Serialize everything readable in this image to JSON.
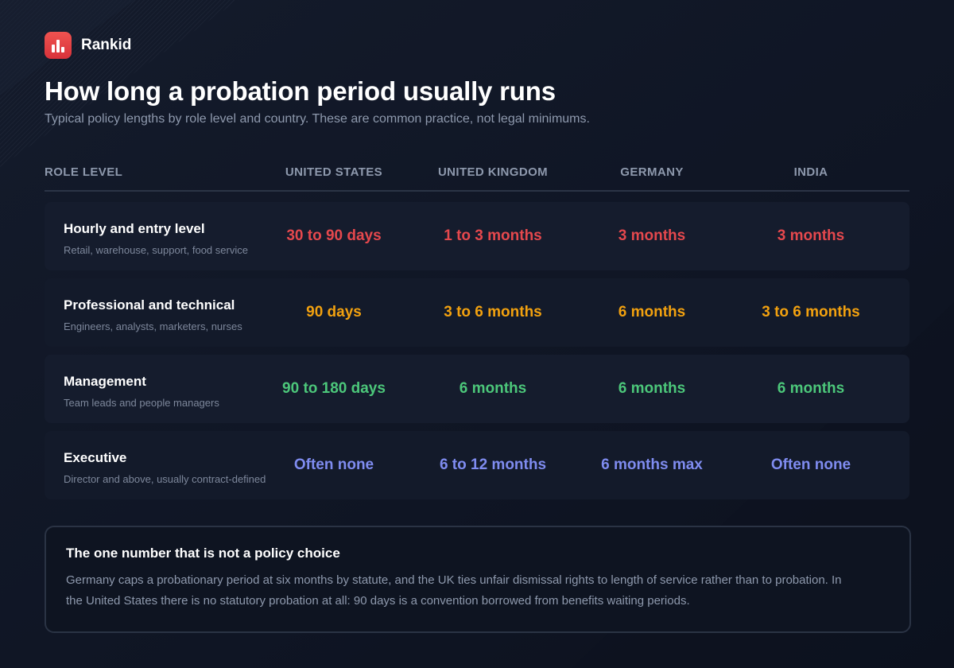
{
  "brand": {
    "name": "Rankid",
    "accent": "#e5413f"
  },
  "header": {
    "title": "How long a probation period usually runs",
    "subtitle": "Typical policy lengths by role level and country. These are common practice, not legal minimums."
  },
  "table": {
    "role_header": "ROLE LEVEL",
    "columns": [
      "UNITED STATES",
      "UNITED KINGDOM",
      "GERMANY",
      "INDIA"
    ],
    "rows": [
      {
        "role": "Hourly and entry level",
        "description": "Retail, warehouse, support, food service",
        "color": "#e5484d",
        "values": [
          "30 to 90 days",
          "1 to 3 months",
          "3 months",
          "3 months"
        ]
      },
      {
        "role": "Professional and technical",
        "description": "Engineers, analysts, marketers, nurses",
        "color": "#f2a10f",
        "values": [
          "90 days",
          "3 to 6 months",
          "6 months",
          "3 to 6 months"
        ]
      },
      {
        "role": "Management",
        "description": "Team leads and people managers",
        "color": "#4cc77a",
        "values": [
          "90 to 180 days",
          "6 months",
          "6 months",
          "6 months"
        ]
      },
      {
        "role": "Executive",
        "description": "Director and above, usually contract-defined",
        "color": "#7f8cf0",
        "values": [
          "Often none",
          "6 to 12 months",
          "6 months max",
          "Often none"
        ]
      }
    ]
  },
  "callout": {
    "title": "The one number that is not a policy choice",
    "body": "Germany caps a probationary period at six months by statute, and the UK ties unfair dismissal rights to length of service rather than to probation. In the United States there is no statutory probation at all: 90 days is a convention borrowed from benefits waiting periods."
  },
  "icons": {
    "logo": "bar-chart-icon"
  }
}
